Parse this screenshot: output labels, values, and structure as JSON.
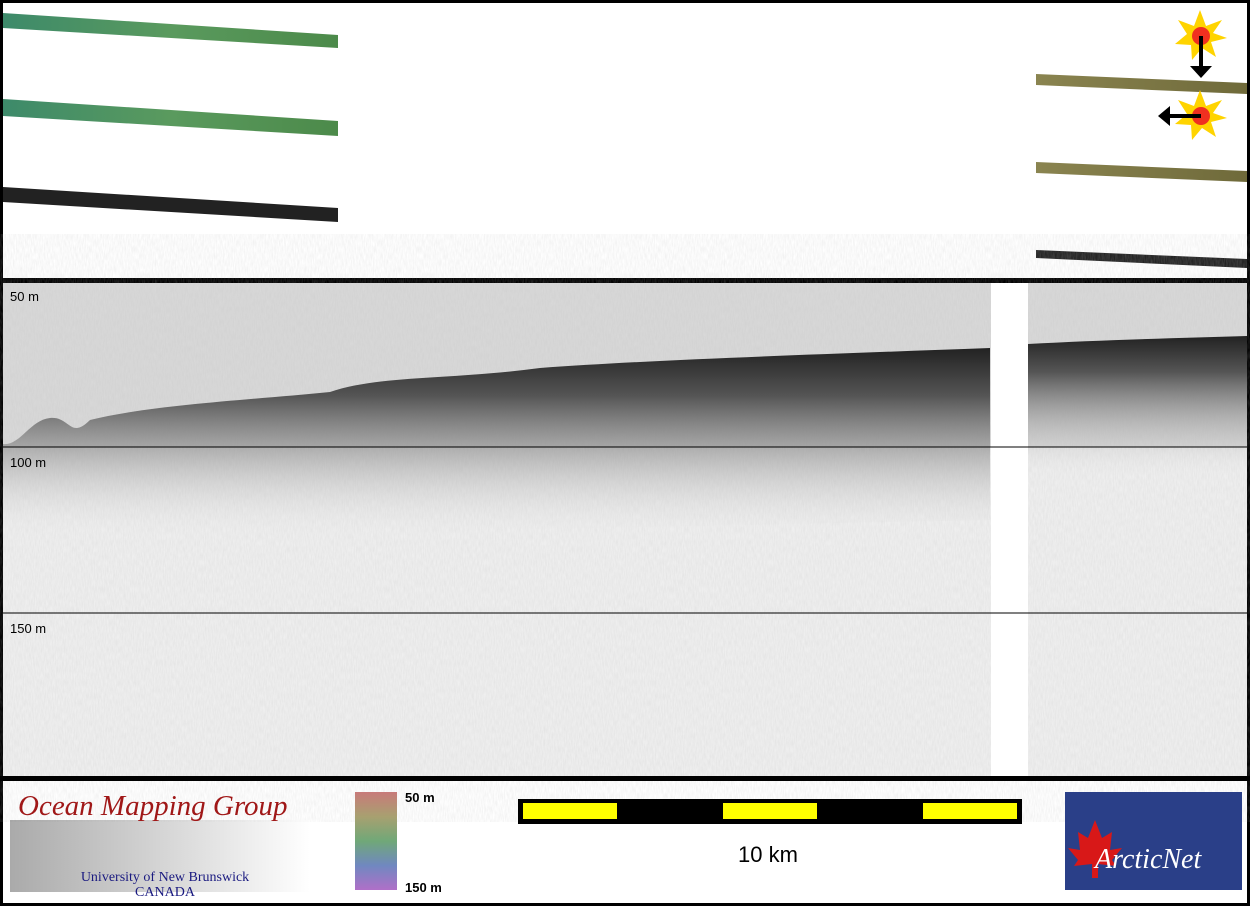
{
  "profile": {
    "depth_labels": [
      "50 m",
      "100 m",
      "150 m"
    ]
  },
  "footer": {
    "logo": {
      "title": "Ocean Mapping Group",
      "line1": "University of New Brunswick",
      "line2": "CANADA"
    },
    "colorbar": {
      "top": "50 m",
      "bottom": "150 m"
    },
    "scale_bar": {
      "label": "10 km"
    },
    "partner": "ArcticNet"
  }
}
